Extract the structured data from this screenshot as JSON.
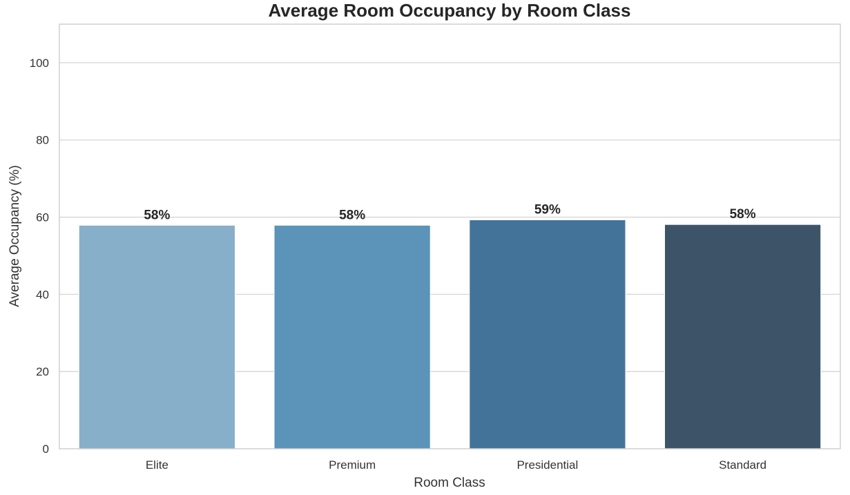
{
  "chart_data": {
    "type": "bar",
    "title": "Average Room Occupancy by Room Class",
    "xlabel": "Room Class",
    "ylabel": "Average Occupancy (%)",
    "categories": [
      "Elite",
      "Premium",
      "Presidential",
      "Standard"
    ],
    "values": [
      57.9,
      57.9,
      59.3,
      58.1
    ],
    "data_labels": [
      "58%",
      "58%",
      "59%",
      "58%"
    ],
    "colors": [
      "#88afca",
      "#5b93b9",
      "#44739a",
      "#3d5368"
    ],
    "ylim": [
      0,
      110
    ],
    "yticks": [
      0,
      20,
      40,
      60,
      80,
      100
    ],
    "grid": true,
    "legend": "none"
  }
}
